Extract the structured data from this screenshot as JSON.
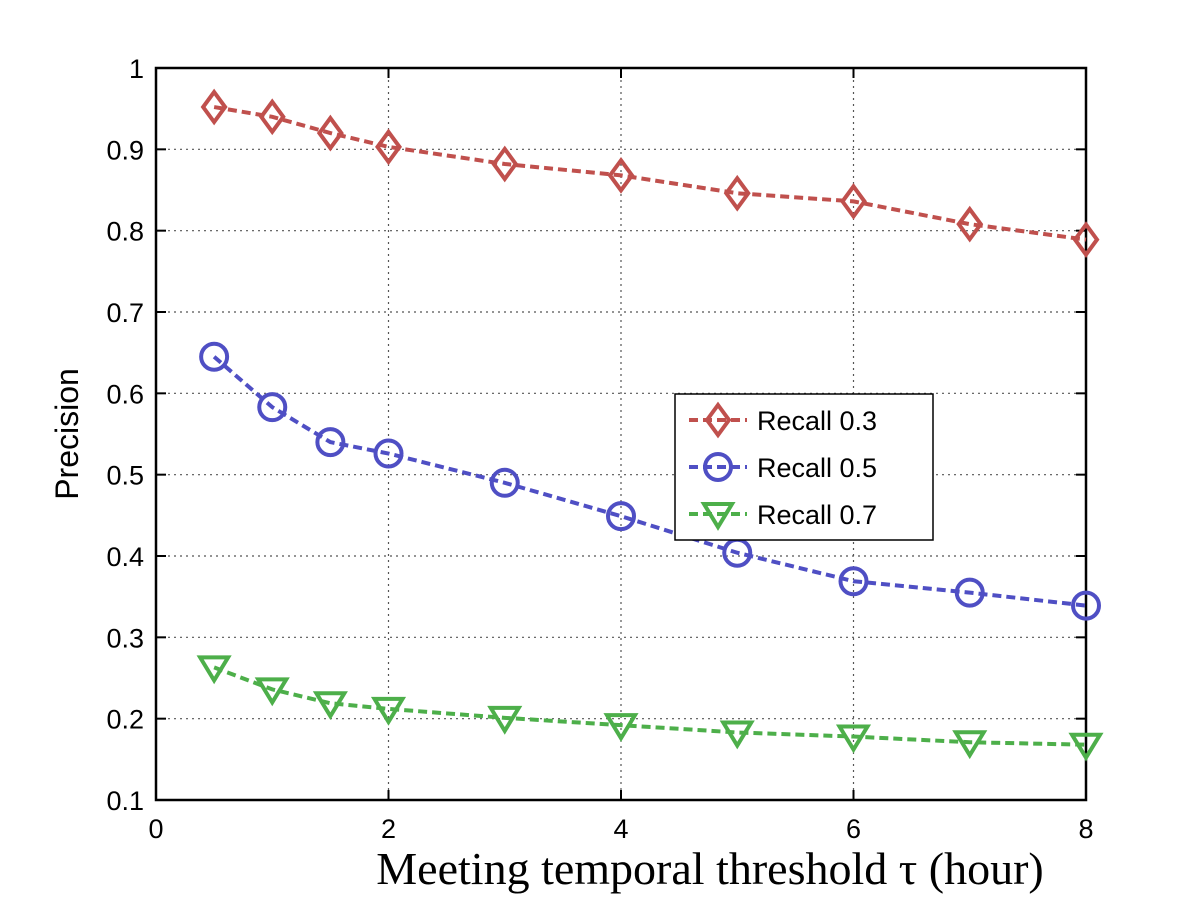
{
  "chart_data": {
    "type": "line",
    "xlabel": "Meeting temporal threshold τ (hour)",
    "ylabel": "Precision",
    "xlim": [
      0,
      8
    ],
    "ylim": [
      0.1,
      1
    ],
    "xticks": [
      0,
      2,
      4,
      6,
      8
    ],
    "yticks": [
      0.1,
      0.2,
      0.3,
      0.4,
      0.5,
      0.6,
      0.7,
      0.8,
      0.9,
      1
    ],
    "grid": true,
    "legend_position": "center-right",
    "x": [
      0.5,
      1,
      1.5,
      2,
      3,
      4,
      5,
      6,
      7,
      8
    ],
    "series": [
      {
        "name": "Recall 0.3",
        "color": "#c0504d",
        "marker": "diamond",
        "values": [
          0.952,
          0.94,
          0.92,
          0.903,
          0.882,
          0.868,
          0.846,
          0.836,
          0.808,
          0.789
        ]
      },
      {
        "name": "Recall 0.5",
        "color": "#4f4fc4",
        "marker": "circle",
        "values": [
          0.645,
          0.583,
          0.54,
          0.526,
          0.49,
          0.449,
          0.404,
          0.369,
          0.355,
          0.339
        ]
      },
      {
        "name": "Recall 0.7",
        "color": "#4daf4a",
        "marker": "triangle-down",
        "values": [
          0.263,
          0.236,
          0.219,
          0.212,
          0.201,
          0.192,
          0.183,
          0.178,
          0.171,
          0.168
        ]
      }
    ]
  }
}
